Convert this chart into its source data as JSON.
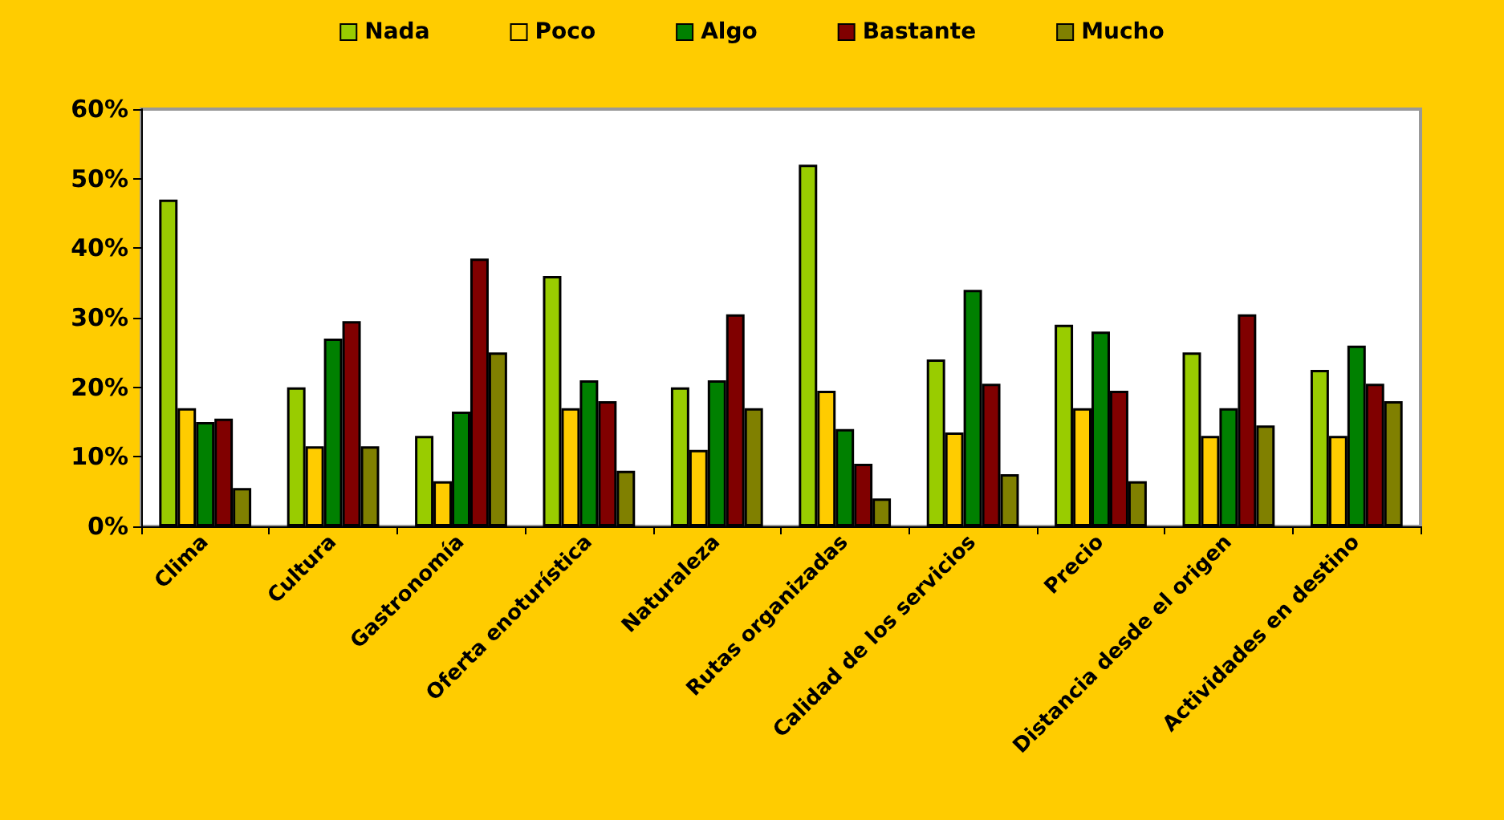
{
  "chart_data": {
    "type": "bar",
    "categories": [
      "Clima",
      "Cultura",
      "Gastronomía",
      "Oferta enoturística",
      "Naturaleza",
      "Rutas organizadas",
      "Calidad de los servicios",
      "Precio",
      "Distancia desde el origen",
      "Actividades en destino"
    ],
    "series": [
      {
        "name": "Nada",
        "color": "#99cc00",
        "values": [
          47,
          20,
          13,
          36,
          20,
          52,
          24,
          29,
          25,
          22.5
        ]
      },
      {
        "name": "Poco",
        "color": "#ffcc00",
        "values": [
          17,
          11.5,
          6.5,
          17,
          11,
          19.5,
          13.5,
          17,
          13,
          13
        ]
      },
      {
        "name": "Algo",
        "color": "#008000",
        "values": [
          15,
          27,
          16.5,
          21,
          21,
          14,
          34,
          28,
          17,
          26
        ]
      },
      {
        "name": "Bastante",
        "color": "#800000",
        "values": [
          15.5,
          29.5,
          38.5,
          18,
          30.5,
          9,
          20.5,
          19.5,
          30.5,
          20.5
        ]
      },
      {
        "name": "Mucho",
        "color": "#808000",
        "values": [
          5.5,
          11.5,
          25,
          8,
          17,
          4,
          7.5,
          6.5,
          14.5,
          18
        ]
      }
    ],
    "ylim": [
      0,
      60
    ],
    "yticks": [
      {
        "value": 0,
        "label": "0%"
      },
      {
        "value": 10,
        "label": "10%"
      },
      {
        "value": 20,
        "label": "20%"
      },
      {
        "value": 30,
        "label": "30%"
      },
      {
        "value": 40,
        "label": "40%"
      },
      {
        "value": 50,
        "label": "50%"
      },
      {
        "value": 60,
        "label": "60%"
      }
    ],
    "grid": false,
    "legend": "top"
  }
}
